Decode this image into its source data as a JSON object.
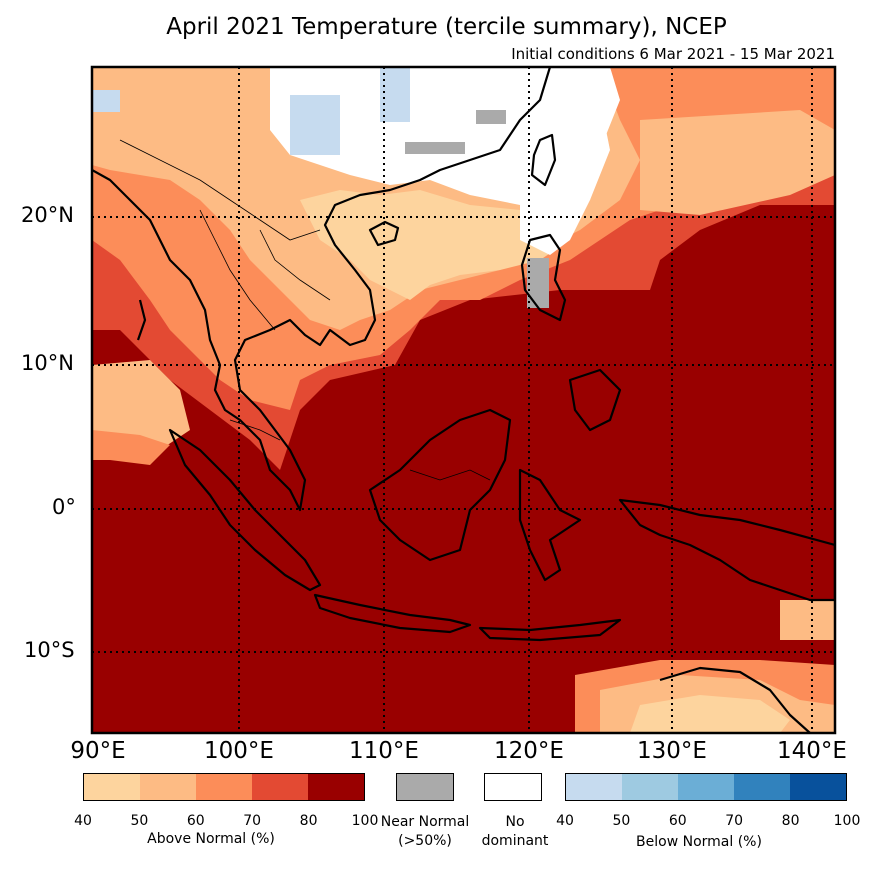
{
  "title": "April 2021 Temperature (tercile summary), NCEP",
  "subtitle": "Initial conditions 6 Mar 2021 - 15 Mar 2021",
  "lat_labels": [
    "20°N",
    "10°N",
    "0°",
    "10°S"
  ],
  "lon_labels": [
    "90°E",
    "100°E",
    "110°E",
    "120°E",
    "130°E",
    "140°E"
  ],
  "legend": {
    "above": {
      "caption": "Above Normal (%)",
      "ticks": [
        "40",
        "50",
        "60",
        "70",
        "80",
        "100"
      ],
      "colors": [
        "#fdd49e",
        "#fdbb84",
        "#fc8d59",
        "#e34a33",
        "#990000"
      ]
    },
    "near": {
      "caption_line1": "Near Normal",
      "caption_line2": "(>50%)",
      "color": "#aaaaaa"
    },
    "none": {
      "caption_line1": "No",
      "caption_line2": "dominant",
      "color": "#ffffff"
    },
    "below": {
      "caption": "Below Normal (%)",
      "ticks": [
        "40",
        "50",
        "60",
        "70",
        "80",
        "100"
      ],
      "colors": [
        "#c6dbef",
        "#9ecae1",
        "#6baed6",
        "#3182bd",
        "#08519c"
      ]
    }
  }
}
